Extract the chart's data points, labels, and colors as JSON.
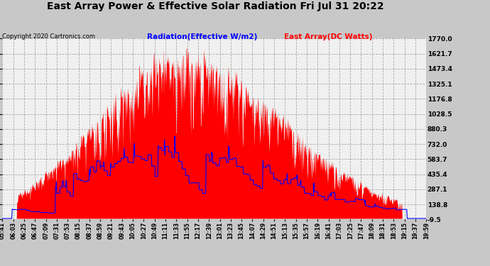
{
  "title": "East Array Power & Effective Solar Radiation Fri Jul 31 20:22",
  "copyright": "Copyright 2020 Cartronics.com",
  "legend_radiation": "Radiation(Effective W/m2)",
  "legend_east": "East Array(DC Watts)",
  "y_ticks": [
    -9.5,
    138.8,
    287.1,
    435.4,
    583.7,
    732.0,
    880.3,
    1028.5,
    1176.8,
    1325.1,
    1473.4,
    1621.7,
    1770.0
  ],
  "y_min": -9.5,
  "y_max": 1770.0,
  "background_color": "#c8c8c8",
  "plot_bg_color": "#f0f0f0",
  "x_labels": [
    "05:41",
    "06:03",
    "06:25",
    "06:47",
    "07:09",
    "07:31",
    "07:53",
    "08:15",
    "08:37",
    "08:59",
    "09:21",
    "09:43",
    "10:05",
    "10:27",
    "10:49",
    "11:11",
    "11:33",
    "11:55",
    "12:17",
    "12:39",
    "13:01",
    "13:23",
    "13:45",
    "14:07",
    "14:29",
    "14:51",
    "15:13",
    "15:35",
    "15:57",
    "16:19",
    "16:41",
    "17:03",
    "17:25",
    "17:47",
    "18:09",
    "18:31",
    "18:53",
    "19:15",
    "19:37",
    "19:59"
  ]
}
